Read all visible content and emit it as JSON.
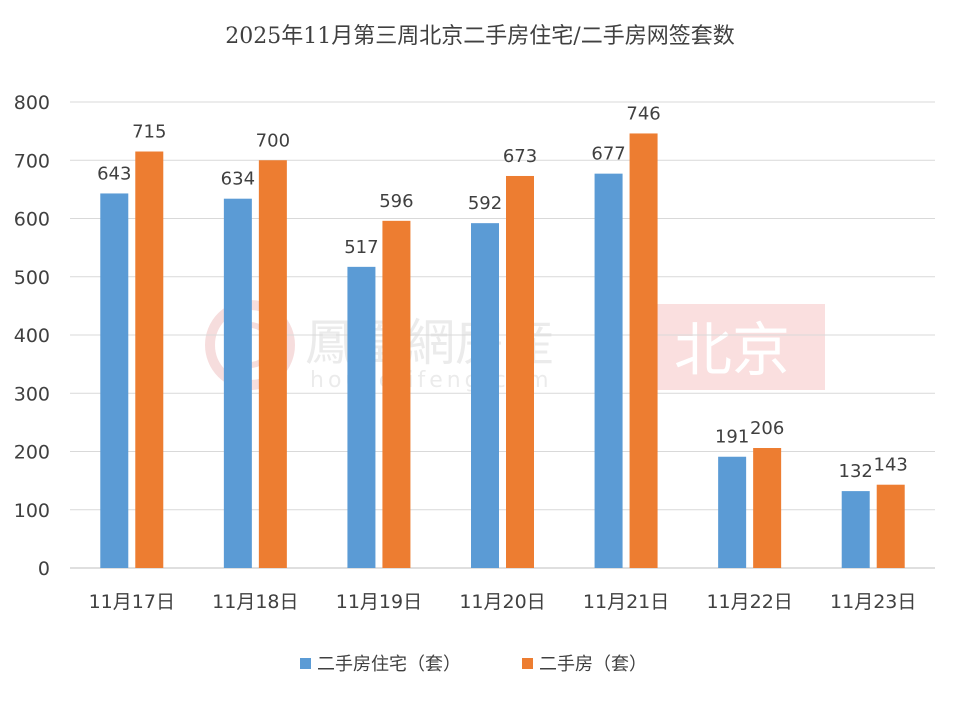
{
  "chart_data": {
    "type": "bar",
    "title": "2025年11月第三周北京二手房住宅/二手房网签套数",
    "categories": [
      "11月17日",
      "11月18日",
      "11月19日",
      "11月20日",
      "11月21日",
      "11月22日",
      "11月23日"
    ],
    "series": [
      {
        "name": "二手房住宅（套）",
        "color": "#5b9bd5",
        "values": [
          643,
          634,
          517,
          592,
          677,
          191,
          132
        ]
      },
      {
        "name": "二手房（套）",
        "color": "#ed7d31",
        "values": [
          715,
          700,
          596,
          673,
          746,
          206,
          143
        ]
      }
    ],
    "ylim": [
      0,
      800
    ],
    "yticks": [
      0,
      100,
      200,
      300,
      400,
      500,
      600,
      700,
      800
    ],
    "grid": true,
    "legend": "bottom",
    "data_labels": true
  },
  "watermark": {
    "brand": "鳳凰網房産",
    "url": "house.ifeng.com",
    "city": "北京"
  }
}
